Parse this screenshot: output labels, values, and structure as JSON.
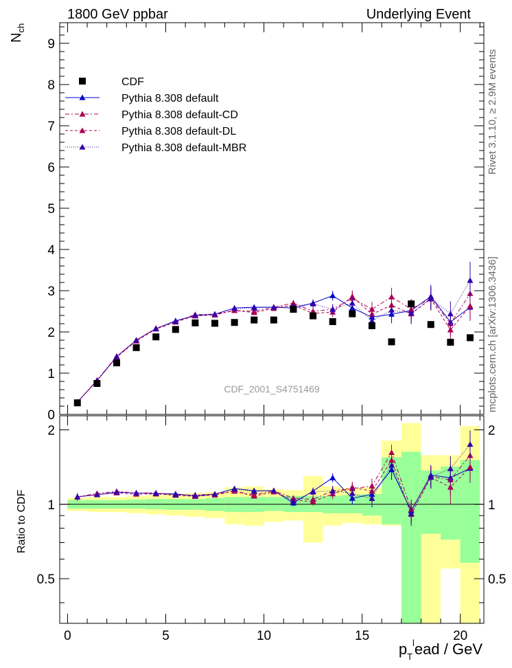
{
  "header": {
    "left_title": "1800 GeV ppbar",
    "right_title": "Underlying Event"
  },
  "side_labels": {
    "top": "Rivet 3.1.10, ≥ 2.9M events",
    "bottom": "mcplots.cern.ch [arXiv:1306.3436]"
  },
  "watermark": "CDF_2001_S4751469",
  "axes": {
    "ylabel_main": "N",
    "ylabel_main_sub": "ch",
    "ylabel_ratio": "Ratio to CDF",
    "xlabel_main": "p",
    "xlabel_sub": "T",
    "xlabel_sup": "l",
    "xlabel_rest": "ead / GeV"
  },
  "chart_data": {
    "type": "scatter",
    "xlim": [
      -0.4,
      21.2
    ],
    "ylim": [
      0,
      9.5
    ],
    "ratio_ylim": [
      0.33,
      2.28
    ],
    "x_ticks": [
      "0",
      "5",
      "10",
      "15",
      "20"
    ],
    "y_ticks": [
      "0",
      "1",
      "2",
      "3",
      "4",
      "5",
      "6",
      "7",
      "8",
      "9"
    ],
    "ratio_ticks": [
      "0.5",
      "1",
      "2"
    ],
    "x": [
      0.5,
      1.5,
      2.5,
      3.5,
      4.5,
      5.5,
      6.5,
      7.5,
      8.5,
      9.5,
      10.5,
      11.5,
      12.5,
      13.5,
      14.5,
      15.5,
      16.5,
      17.5,
      18.5,
      19.5,
      20.5
    ],
    "bin_edges": [
      0,
      1,
      2,
      3,
      4,
      5,
      6,
      7,
      8,
      9,
      10,
      11,
      12,
      13,
      14,
      15,
      16,
      17,
      18,
      19,
      20,
      21
    ],
    "data": {
      "name": "CDF",
      "values": [
        0.28,
        0.75,
        1.25,
        1.62,
        1.88,
        2.06,
        2.22,
        2.21,
        2.23,
        2.29,
        2.29,
        2.55,
        2.39,
        2.25,
        2.44,
        2.15,
        1.76,
        2.68,
        2.18,
        1.75,
        1.86
      ]
    },
    "band_stat_low": [
      0.96,
      0.96,
      0.96,
      0.96,
      0.955,
      0.95,
      0.95,
      0.94,
      0.93,
      0.93,
      0.94,
      0.93,
      0.93,
      0.92,
      0.92,
      0.9,
      0.83,
      0.28,
      0.76,
      0.72,
      0.58
    ],
    "band_stat_high": [
      1.04,
      1.04,
      1.04,
      1.045,
      1.05,
      1.05,
      1.05,
      1.06,
      1.07,
      1.07,
      1.07,
      1.08,
      1.08,
      1.08,
      1.09,
      1.1,
      1.55,
      1.63,
      1.37,
      1.42,
      1.51
    ],
    "band_tot_low": [
      0.94,
      0.93,
      0.93,
      0.92,
      0.91,
      0.9,
      0.89,
      0.88,
      0.83,
      0.82,
      0.85,
      0.86,
      0.7,
      0.82,
      0.84,
      0.83,
      0.82,
      0.28,
      0.3,
      0.55,
      0.33
    ],
    "band_tot_high": [
      1.06,
      1.07,
      1.07,
      1.08,
      1.09,
      1.1,
      1.11,
      1.12,
      1.17,
      1.18,
      1.15,
      1.14,
      1.3,
      1.18,
      1.16,
      1.17,
      1.81,
      2.13,
      1.58,
      1.58,
      2.07
    ],
    "series": [
      {
        "name": "Pythia 8.308 default",
        "color": "#0000cc",
        "dash": "",
        "values": [
          0.3,
          0.82,
          1.4,
          1.8,
          2.08,
          2.27,
          2.4,
          2.43,
          2.58,
          2.6,
          2.6,
          2.58,
          2.7,
          2.88,
          2.58,
          2.36,
          2.43,
          2.52,
          2.86,
          2.24,
          2.6
        ],
        "errors": [
          0.01,
          0.01,
          0.02,
          0.02,
          0.02,
          0.02,
          0.03,
          0.03,
          0.04,
          0.05,
          0.06,
          0.07,
          0.09,
          0.12,
          0.15,
          0.18,
          0.22,
          0.25,
          0.28,
          0.3,
          0.33
        ]
      },
      {
        "name": "Pythia 8.308 default-CD",
        "color": "#aa0055",
        "dash": "6,3,2,3",
        "values": [
          0.3,
          0.83,
          1.41,
          1.8,
          2.09,
          2.25,
          2.42,
          2.43,
          2.52,
          2.5,
          2.6,
          2.7,
          2.5,
          2.55,
          2.82,
          2.55,
          2.85,
          2.55,
          2.82,
          2.2,
          2.93
        ],
        "errors": [
          0.01,
          0.01,
          0.02,
          0.02,
          0.02,
          0.02,
          0.03,
          0.03,
          0.04,
          0.05,
          0.06,
          0.07,
          0.09,
          0.12,
          0.15,
          0.18,
          0.22,
          0.25,
          0.28,
          0.3,
          0.35
        ]
      },
      {
        "name": "Pythia 8.308 default-DL",
        "color": "#aa0055",
        "dash": "4,3",
        "values": [
          0.3,
          0.82,
          1.39,
          1.78,
          2.07,
          2.24,
          2.39,
          2.41,
          2.52,
          2.47,
          2.57,
          2.65,
          2.45,
          2.48,
          2.86,
          2.43,
          2.65,
          2.44,
          2.8,
          2.05,
          2.63
        ],
        "errors": [
          0.01,
          0.01,
          0.02,
          0.02,
          0.02,
          0.02,
          0.03,
          0.03,
          0.04,
          0.05,
          0.06,
          0.07,
          0.09,
          0.12,
          0.15,
          0.18,
          0.22,
          0.25,
          0.28,
          0.3,
          0.35
        ]
      },
      {
        "name": "Pythia 8.308 default-MBR",
        "color": "#3300aa",
        "dash": "1,2",
        "values": [
          0.3,
          0.82,
          1.4,
          1.8,
          2.08,
          2.25,
          2.41,
          2.43,
          2.57,
          2.58,
          2.6,
          2.63,
          2.68,
          2.55,
          2.7,
          2.27,
          2.53,
          2.46,
          2.81,
          2.44,
          3.25
        ],
        "errors": [
          0.01,
          0.01,
          0.02,
          0.02,
          0.02,
          0.02,
          0.03,
          0.03,
          0.04,
          0.05,
          0.06,
          0.07,
          0.09,
          0.12,
          0.15,
          0.18,
          0.22,
          0.25,
          0.28,
          0.3,
          0.45
        ]
      }
    ],
    "legend_position": "top-left",
    "colors": {
      "band_stat": "#99ff99",
      "band_total": "#ffff99"
    }
  }
}
